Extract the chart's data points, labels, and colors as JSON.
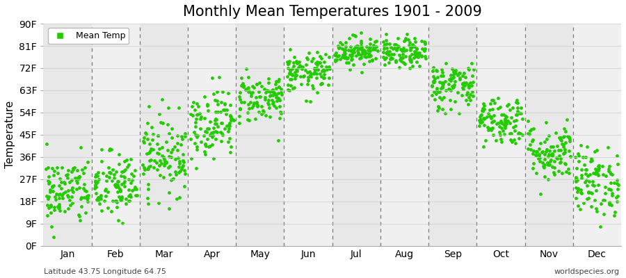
{
  "title": "Monthly Mean Temperatures 1901 - 2009",
  "ylabel": "Temperature",
  "xlabel_bottom_left": "Latitude 43.75 Longitude 64.75",
  "xlabel_bottom_right": "worldspecies.org",
  "legend_label": "Mean Temp",
  "dot_color": "#22cc00",
  "dot_size": 12,
  "yticks": [
    0,
    9,
    18,
    27,
    36,
    45,
    54,
    63,
    72,
    81,
    90
  ],
  "ytick_labels": [
    "0F",
    "9F",
    "18F",
    "27F",
    "36F",
    "45F",
    "54F",
    "63F",
    "72F",
    "81F",
    "90F"
  ],
  "months": [
    "Jan",
    "Feb",
    "Mar",
    "Apr",
    "May",
    "Jun",
    "Jul",
    "Aug",
    "Sep",
    "Oct",
    "Nov",
    "Dec"
  ],
  "mean_temps_F": [
    22,
    24,
    37,
    50,
    60,
    70,
    79,
    78,
    65,
    51,
    38,
    26
  ],
  "std_temps_F": [
    7,
    7,
    8,
    7,
    5,
    4,
    3,
    3,
    5,
    5,
    6,
    7
  ],
  "n_years": 109,
  "ylim": [
    0,
    90
  ],
  "bg_colors": [
    "#e8e8e8",
    "#f0f0f0"
  ],
  "title_fontsize": 15,
  "tick_fontsize": 10,
  "label_fontsize": 11
}
